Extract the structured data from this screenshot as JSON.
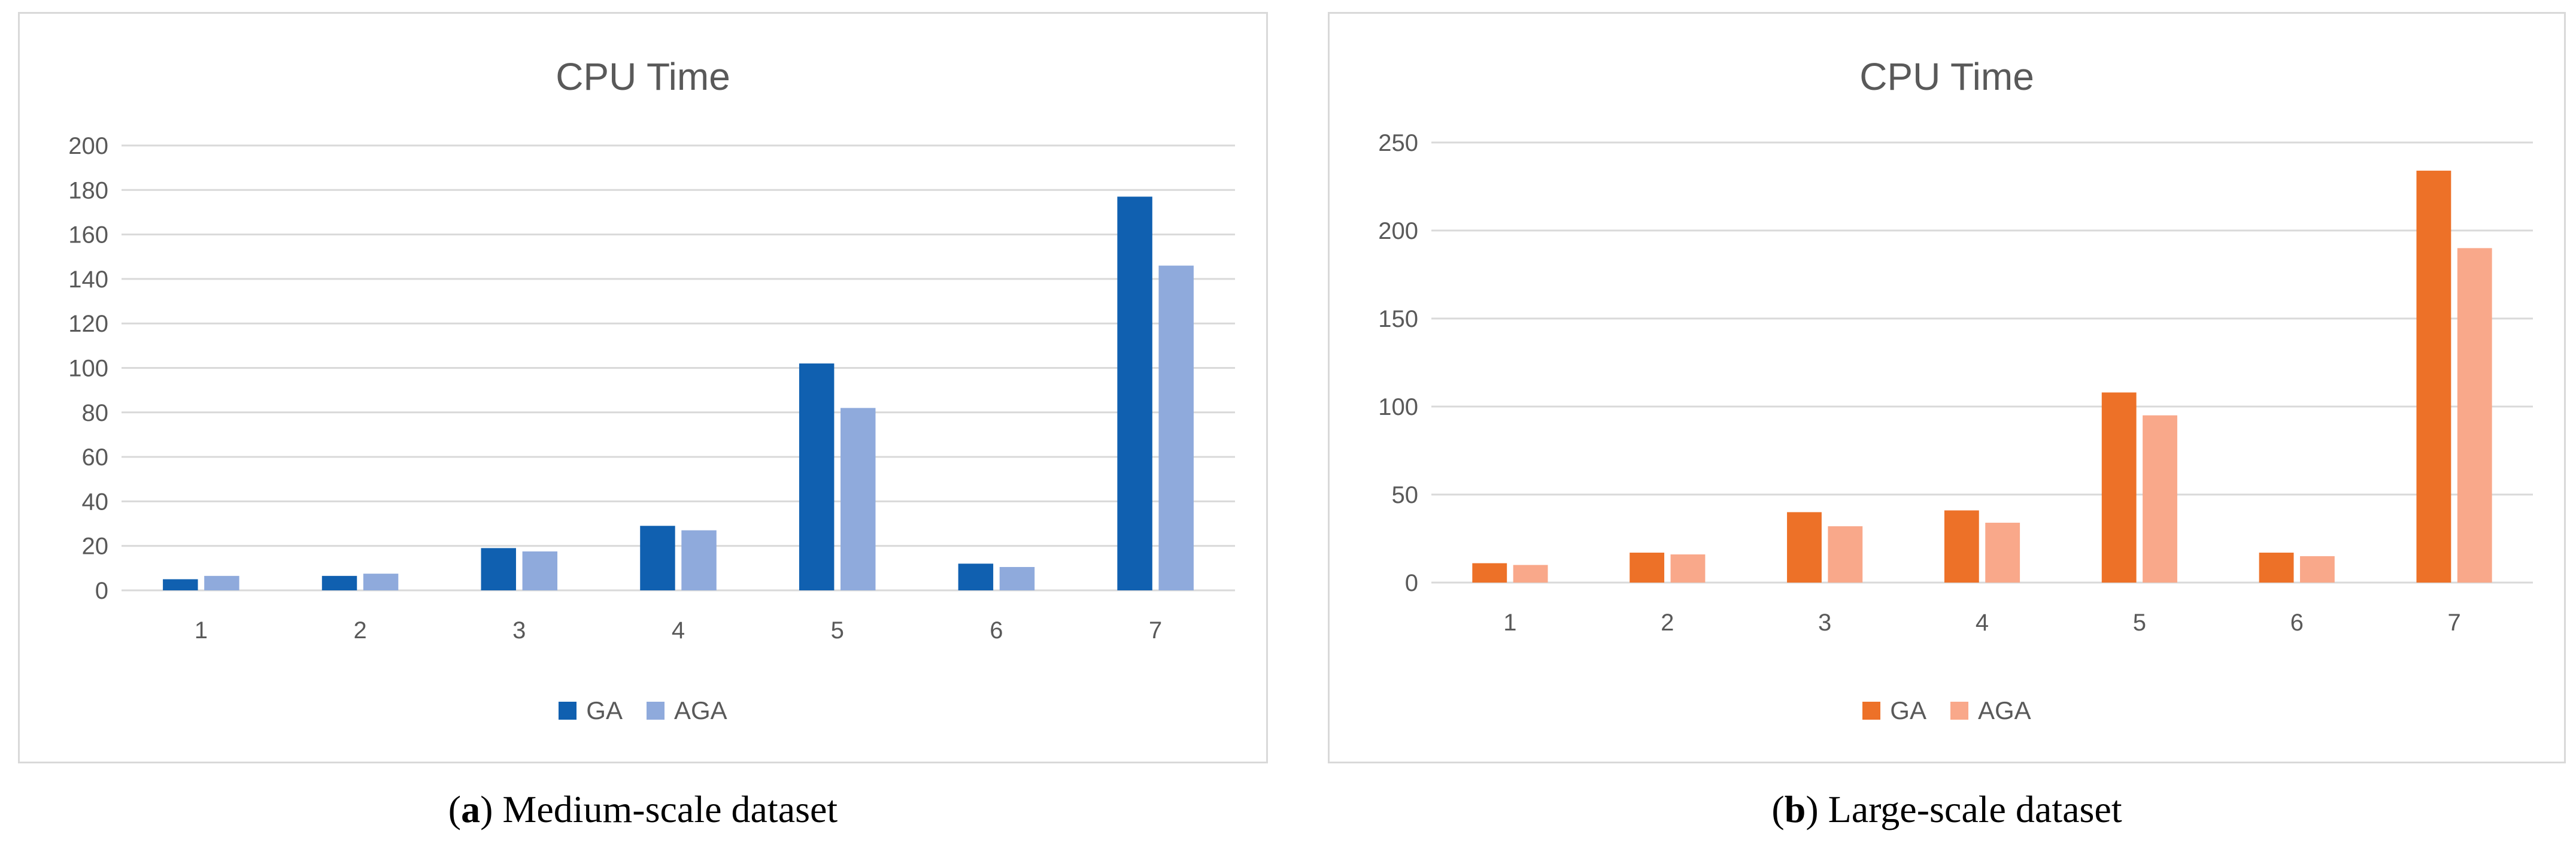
{
  "chart_data": [
    {
      "type": "bar",
      "title": "CPU Time",
      "categories": [
        "1",
        "2",
        "3",
        "4",
        "5",
        "6",
        "7"
      ],
      "series": [
        {
          "name": "GA",
          "color": "#1060b0",
          "values": [
            5,
            6.5,
            19,
            29,
            102,
            12,
            177
          ]
        },
        {
          "name": "AGA",
          "color": "#8faadc",
          "values": [
            6.5,
            7.5,
            17.5,
            27,
            82,
            10.5,
            146
          ]
        }
      ],
      "ylim": [
        0,
        200
      ],
      "yticks": [
        0,
        20,
        40,
        60,
        80,
        100,
        120,
        140,
        160,
        180,
        200
      ],
      "grid": true,
      "legend": "bottom",
      "xlabel": "",
      "ylabel": ""
    },
    {
      "type": "bar",
      "title": "CPU Time",
      "categories": [
        "1",
        "2",
        "3",
        "4",
        "5",
        "6",
        "7"
      ],
      "series": [
        {
          "name": "GA",
          "color": "#ed7128",
          "values": [
            11,
            17,
            40,
            41,
            108,
            17,
            234
          ]
        },
        {
          "name": "AGA",
          "color": "#f9a88a",
          "values": [
            10,
            16,
            32,
            34,
            95,
            15,
            190
          ]
        }
      ],
      "ylim": [
        0,
        250
      ],
      "yticks": [
        0,
        50,
        100,
        150,
        200,
        250
      ],
      "grid": true,
      "legend": "bottom",
      "xlabel": "",
      "ylabel": ""
    }
  ],
  "captions": [
    {
      "letter": "a",
      "text": " Medium-scale dataset"
    },
    {
      "letter": "b",
      "text": " Large-scale dataset"
    }
  ]
}
